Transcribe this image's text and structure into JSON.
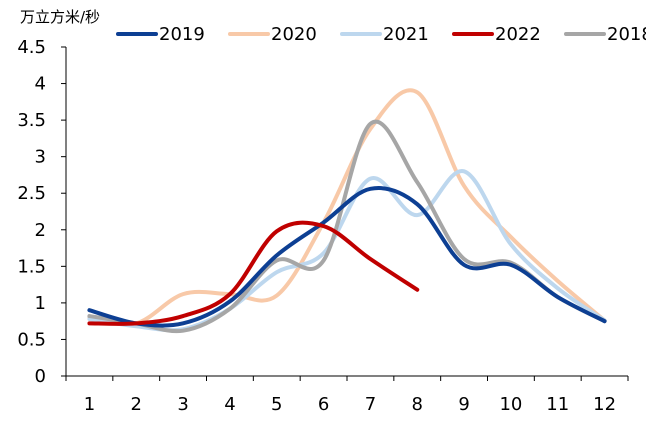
{
  "chart_data": {
    "type": "line",
    "ylabel": "万立方米/秒",
    "categories": [
      "1",
      "2",
      "3",
      "4",
      "5",
      "6",
      "7",
      "8",
      "9",
      "10",
      "11",
      "12"
    ],
    "ylim": [
      0,
      4.5
    ],
    "yticks": [
      "0",
      "0.5",
      "1",
      "1.5",
      "2",
      "2.5",
      "3",
      "3.5",
      "4",
      "4.5"
    ],
    "grid": false,
    "legend_position": "top",
    "series": [
      {
        "name": "2019",
        "color": "#0d3f93",
        "values": [
          0.9,
          0.72,
          0.72,
          1.02,
          1.65,
          2.1,
          2.56,
          2.35,
          1.52,
          1.52,
          1.08,
          0.75
        ]
      },
      {
        "name": "2020",
        "color": "#f8c9a8",
        "values": [
          0.8,
          0.72,
          1.12,
          1.12,
          1.1,
          2.1,
          3.38,
          3.88,
          2.6,
          1.9,
          1.3,
          0.76
        ]
      },
      {
        "name": "2021",
        "color": "#bdd7ee",
        "values": [
          0.78,
          0.68,
          0.64,
          0.92,
          1.42,
          1.68,
          2.7,
          2.2,
          2.8,
          1.8,
          1.2,
          0.76
        ]
      },
      {
        "name": "2022",
        "color": "#c00000",
        "values": [
          0.72,
          0.72,
          0.82,
          1.12,
          1.98,
          2.05,
          1.6,
          1.18,
          null,
          null,
          null,
          null
        ]
      },
      {
        "name": "2018",
        "color": "#a6a6a6",
        "values": [
          0.82,
          0.72,
          0.62,
          0.92,
          1.58,
          1.58,
          3.45,
          2.65,
          1.6,
          1.55,
          1.08,
          0.75
        ]
      }
    ]
  }
}
